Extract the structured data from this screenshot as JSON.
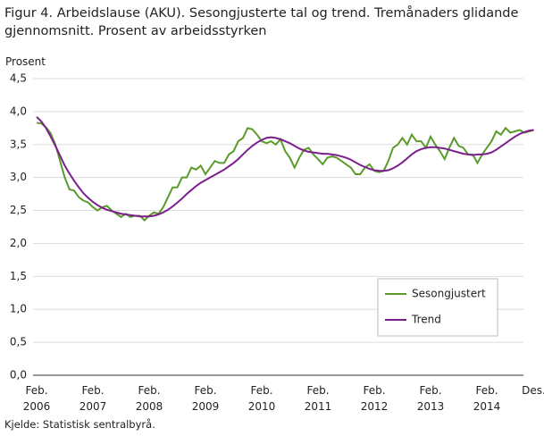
{
  "chart_data": {
    "type": "line",
    "title": "Figur 4. Arbeidslause (AKU). Sesongjusterte tal og trend. Tremånaders glidande gjennomsnitt. Prosent av arbeidsstyrken",
    "y_label": "Prosent",
    "source": "Kjelde: Statistisk sentralbyrå.",
    "categories": [
      "Feb. 2006",
      null,
      null,
      null,
      null,
      null,
      null,
      null,
      null,
      null,
      null,
      null,
      "Feb. 2007",
      null,
      null,
      null,
      null,
      null,
      null,
      null,
      null,
      null,
      null,
      null,
      "Feb. 2008",
      null,
      null,
      null,
      null,
      null,
      null,
      null,
      null,
      null,
      null,
      null,
      "Feb. 2009",
      null,
      null,
      null,
      null,
      null,
      null,
      null,
      null,
      null,
      null,
      null,
      "Feb. 2010",
      null,
      null,
      null,
      null,
      null,
      null,
      null,
      null,
      null,
      null,
      null,
      "Feb. 2011",
      null,
      null,
      null,
      null,
      null,
      null,
      null,
      null,
      null,
      null,
      null,
      "Feb. 2012",
      null,
      null,
      null,
      null,
      null,
      null,
      null,
      null,
      null,
      null,
      null,
      "Feb. 2013",
      null,
      null,
      null,
      null,
      null,
      null,
      null,
      null,
      null,
      null,
      null,
      "Feb. 2014",
      null,
      null,
      null,
      null,
      null,
      null,
      null,
      null,
      null,
      "Des."
    ],
    "series": [
      {
        "name": "Sesongjustert",
        "color": "#5a9b2a",
        "values": [
          3.83,
          3.82,
          3.76,
          3.67,
          3.5,
          3.25,
          3.0,
          2.82,
          2.8,
          2.7,
          2.65,
          2.62,
          2.55,
          2.5,
          2.55,
          2.57,
          2.5,
          2.45,
          2.4,
          2.45,
          2.4,
          2.42,
          2.42,
          2.35,
          2.42,
          2.47,
          2.45,
          2.55,
          2.7,
          2.85,
          2.85,
          3.0,
          3.0,
          3.15,
          3.12,
          3.18,
          3.05,
          3.15,
          3.25,
          3.22,
          3.22,
          3.35,
          3.4,
          3.55,
          3.6,
          3.75,
          3.73,
          3.65,
          3.55,
          3.52,
          3.55,
          3.5,
          3.58,
          3.4,
          3.3,
          3.15,
          3.3,
          3.42,
          3.45,
          3.35,
          3.28,
          3.2,
          3.3,
          3.32,
          3.3,
          3.25,
          3.2,
          3.15,
          3.05,
          3.05,
          3.15,
          3.2,
          3.1,
          3.08,
          3.1,
          3.25,
          3.45,
          3.5,
          3.6,
          3.5,
          3.65,
          3.55,
          3.55,
          3.45,
          3.62,
          3.5,
          3.4,
          3.28,
          3.45,
          3.6,
          3.48,
          3.45,
          3.35,
          3.35,
          3.22,
          3.35,
          3.45,
          3.55,
          3.7,
          3.65,
          3.75,
          3.68,
          3.7,
          3.72,
          3.68,
          3.7,
          3.72
        ]
      },
      {
        "name": "Trend",
        "color": "#7b1f8c",
        "values": [
          3.92,
          3.85,
          3.75,
          3.62,
          3.48,
          3.33,
          3.18,
          3.06,
          2.95,
          2.85,
          2.76,
          2.69,
          2.63,
          2.58,
          2.54,
          2.51,
          2.49,
          2.47,
          2.45,
          2.44,
          2.43,
          2.42,
          2.41,
          2.41,
          2.41,
          2.42,
          2.44,
          2.47,
          2.51,
          2.56,
          2.62,
          2.68,
          2.75,
          2.81,
          2.87,
          2.92,
          2.96,
          3.0,
          3.04,
          3.08,
          3.12,
          3.17,
          3.22,
          3.28,
          3.35,
          3.42,
          3.48,
          3.53,
          3.57,
          3.6,
          3.61,
          3.6,
          3.58,
          3.55,
          3.52,
          3.48,
          3.44,
          3.41,
          3.39,
          3.38,
          3.37,
          3.36,
          3.36,
          3.35,
          3.34,
          3.32,
          3.3,
          3.27,
          3.23,
          3.19,
          3.16,
          3.13,
          3.11,
          3.1,
          3.1,
          3.11,
          3.14,
          3.18,
          3.23,
          3.29,
          3.35,
          3.4,
          3.43,
          3.45,
          3.46,
          3.46,
          3.45,
          3.44,
          3.42,
          3.4,
          3.38,
          3.36,
          3.35,
          3.34,
          3.35,
          3.35,
          3.36,
          3.38,
          3.42,
          3.47,
          3.52,
          3.57,
          3.62,
          3.66,
          3.69,
          3.71,
          3.72
        ]
      }
    ],
    "ylim": [
      0,
      4.5
    ],
    "yticks": [
      {
        "value": 0,
        "label": "0,0"
      },
      {
        "value": 0.5,
        "label": "0,5"
      },
      {
        "value": 1,
        "label": "1,0"
      },
      {
        "value": 1.5,
        "label": "1,5"
      },
      {
        "value": 2,
        "label": "2,0"
      },
      {
        "value": 2.5,
        "label": "2,5"
      },
      {
        "value": 3,
        "label": "3,0"
      },
      {
        "value": 3.5,
        "label": "3,5"
      },
      {
        "value": 4,
        "label": "4,0"
      },
      {
        "value": 4.5,
        "label": "4,5"
      }
    ],
    "grid": true
  }
}
